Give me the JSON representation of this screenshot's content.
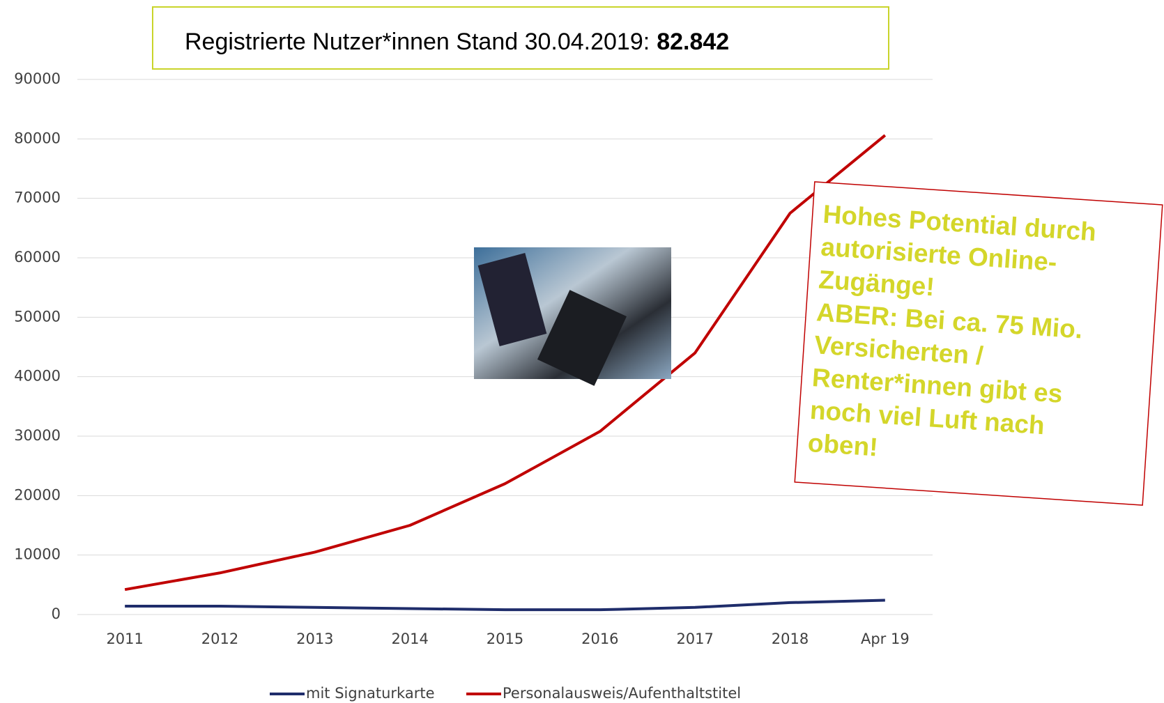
{
  "chart_data": {
    "type": "line",
    "title": "Registrierte Nutzer*innen Stand 30.04.2019:",
    "title_highlight": "82.842",
    "categories": [
      "2011",
      "2012",
      "2013",
      "2014",
      "2015",
      "2016",
      "2017",
      "2018",
      "Apr 19"
    ],
    "series": [
      {
        "name": "mit Signaturkarte",
        "color": "#1f2d6b",
        "values": [
          1400,
          1400,
          1200,
          1000,
          800,
          800,
          1200,
          2000,
          2400
        ]
      },
      {
        "name": "Personalausweis/Aufenthaltstitel",
        "color": "#c00000",
        "values": [
          4200,
          7000,
          10500,
          15000,
          22000,
          30800,
          44000,
          67500,
          80600
        ]
      }
    ],
    "ylim": [
      0,
      90000
    ],
    "yticks": [
      0,
      10000,
      20000,
      30000,
      40000,
      50000,
      60000,
      70000,
      80000,
      90000
    ],
    "grid": true,
    "legend": "bottom",
    "annotation": [
      "Hohes Potential durch",
      "autorisierte Online-",
      "Zugänge!",
      "ABER: Bei ca. 75 Mio.",
      "Versicherten /",
      "Renter*innen gibt es",
      "noch viel Luft nach",
      "oben!"
    ]
  }
}
